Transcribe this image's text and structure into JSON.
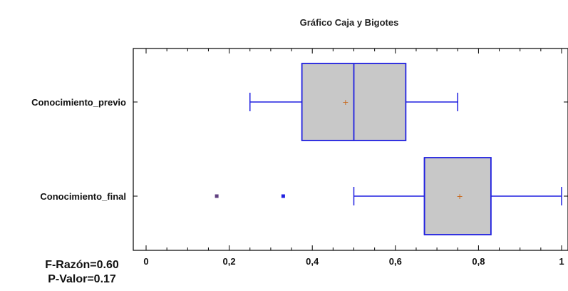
{
  "chart_data": {
    "type": "boxplot",
    "title": "Gráfico Caja y Bigotes",
    "xlabel": "",
    "ylabel": "",
    "xlim": [
      0,
      1
    ],
    "x_ticks": [
      0,
      0.2,
      0.4,
      0.6,
      0.8,
      1
    ],
    "x_tick_labels": [
      "0",
      "0,2",
      "0,4",
      "0,6",
      "0,8",
      "1"
    ],
    "orientation": "horizontal",
    "grid": false,
    "categories": [
      "Conocimiento_previo",
      "Conocimiento_final"
    ],
    "boxes": [
      {
        "category": "Conocimiento_previo",
        "whisker_low": 0.25,
        "q1": 0.375,
        "median": 0.5,
        "q3": 0.625,
        "whisker_high": 0.75,
        "mean": 0.48,
        "outliers": []
      },
      {
        "category": "Conocimiento_final",
        "whisker_low": 0.5,
        "q1": 0.67,
        "median": 0.67,
        "q3": 0.83,
        "whisker_high": 1.0,
        "mean": 0.755,
        "outliers": [
          0.17,
          0.33
        ]
      }
    ],
    "colors": {
      "box_fill": "#c8c8c8",
      "box_stroke": "#2020e0",
      "mean_marker": "#c86414",
      "outlier": "#604080"
    }
  },
  "annotations": {
    "f_ratio": "F-Razón=0.60",
    "p_value": "P-Valor=0.17"
  }
}
